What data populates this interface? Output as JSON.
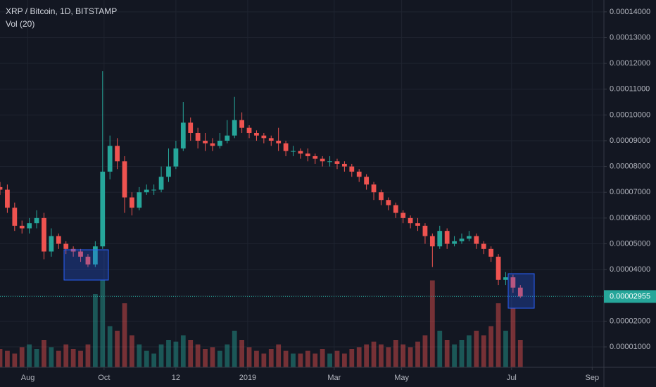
{
  "chart_data": {
    "type": "candlestick",
    "title": "XRP / Bitcoin, 1D, BITSTAMP",
    "volume_title": "Vol (20)",
    "x": [
      0,
      5,
      10,
      15,
      20,
      25,
      30,
      35,
      40,
      45,
      50,
      55,
      60,
      65,
      70,
      75,
      80,
      85,
      90,
      95,
      100,
      105,
      110,
      115,
      120,
      125,
      130,
      135,
      140,
      145,
      150,
      155,
      160,
      165,
      170,
      175,
      180,
      185,
      190,
      195,
      200,
      205,
      210,
      215,
      220,
      225,
      230,
      235,
      240,
      245,
      250,
      255,
      260,
      265,
      270,
      275,
      280,
      285,
      290,
      295,
      300,
      305,
      310,
      315,
      320,
      325,
      330,
      335,
      340,
      345,
      350,
      355
    ],
    "open": [
      7.2e-05,
      7.1e-05,
      6.4e-05,
      5.7e-05,
      5.6e-05,
      5.8e-05,
      6e-05,
      4.7e-05,
      5.3e-05,
      5e-05,
      4.8e-05,
      4.7e-05,
      4.5e-05,
      4.2e-05,
      4.9e-05,
      7.8e-05,
      8.8e-05,
      8.2e-05,
      6.8e-05,
      6.4e-05,
      7e-05,
      7.1e-05,
      7.1e-05,
      7.6e-05,
      8e-05,
      8.7e-05,
      9.7e-05,
      9.3e-05,
      9e-05,
      8.9e-05,
      8.8e-05,
      9e-05,
      9.2e-05,
      9.8e-05,
      9.5e-05,
      9.3e-05,
      9.2e-05,
      9.1e-05,
      9e-05,
      8.9e-05,
      8.6e-05,
      8.6e-05,
      8.5e-05,
      8.4e-05,
      8.3e-05,
      8.2e-05,
      8.2e-05,
      8.1e-05,
      8e-05,
      7.8e-05,
      7.6e-05,
      7.3e-05,
      7e-05,
      6.7e-05,
      6.5e-05,
      6.2e-05,
      6e-05,
      5.8e-05,
      5.7e-05,
      5.3e-05,
      4.9e-05,
      5.5e-05,
      5e-05,
      5.1e-05,
      5.2e-05,
      5.3e-05,
      5e-05,
      4.8e-05,
      4.5e-05,
      3.6e-05,
      3.7e-05,
      3.3e-05
    ],
    "high": [
      7.4e-05,
      7.3e-05,
      6.6e-05,
      5.9e-05,
      6e-05,
      6.3e-05,
      6.2e-05,
      5.6e-05,
      5.4e-05,
      5.1e-05,
      4.9e-05,
      4.8e-05,
      4.6e-05,
      5.1e-05,
      0.000117,
      9.2e-05,
      9.1e-05,
      8.4e-05,
      7e-05,
      7.2e-05,
      7.3e-05,
      7.3e-05,
      8e-05,
      8.7e-05,
      9e-05,
      0.000105,
      9.9e-05,
      9.5e-05,
      9.3e-05,
      9.1e-05,
      9.3e-05,
      9.8e-05,
      0.000107,
      0.000101,
      9.6e-05,
      9.4e-05,
      9.3e-05,
      9.2e-05,
      9.5e-05,
      9e-05,
      8.8e-05,
      8.7e-05,
      8.7e-05,
      8.5e-05,
      8.4e-05,
      8.4e-05,
      8.3e-05,
      8.2e-05,
      8.1e-05,
      7.9e-05,
      7.7e-05,
      7.4e-05,
      7.1e-05,
      6.8e-05,
      6.6e-05,
      6.3e-05,
      6.1e-05,
      6e-05,
      5.8e-05,
      5.4e-05,
      5.7e-05,
      5.6e-05,
      5.3e-05,
      5.4e-05,
      5.5e-05,
      5.4e-05,
      5.1e-05,
      4.9e-05,
      4.6e-05,
      3.9e-05,
      3.8e-05,
      3.4e-05
    ],
    "low": [
      6.9e-05,
      6.2e-05,
      5.5e-05,
      5.4e-05,
      5.4e-05,
      5.6e-05,
      4.4e-05,
      4.5e-05,
      4.8e-05,
      4.6e-05,
      4.5e-05,
      4.3e-05,
      4.1e-05,
      4.1e-05,
      4.8e-05,
      7.5e-05,
      7.9e-05,
      6.2e-05,
      6.1e-05,
      6.3e-05,
      6.9e-05,
      6.9e-05,
      7e-05,
      7.4e-05,
      7.9e-05,
      8.6e-05,
      9e-05,
      8.7e-05,
      8.6e-05,
      8.6e-05,
      8.7e-05,
      8.9e-05,
      9.1e-05,
      9.3e-05,
      9.1e-05,
      9e-05,
      8.9e-05,
      8.8e-05,
      8.6e-05,
      8.4e-05,
      8.4e-05,
      8.3e-05,
      8.2e-05,
      8.1e-05,
      8e-05,
      8e-05,
      7.9e-05,
      7.8e-05,
      7.6e-05,
      7.4e-05,
      7.1e-05,
      6.7e-05,
      6.5e-05,
      6.3e-05,
      6e-05,
      5.8e-05,
      5.6e-05,
      5.5e-05,
      5e-05,
      4.1e-05,
      4.8e-05,
      4.8e-05,
      4.9e-05,
      5e-05,
      5.1e-05,
      4.8e-05,
      4.6e-05,
      4.3e-05,
      3.4e-05,
      3.4e-05,
      3.1e-05,
      2.9e-05
    ],
    "close": [
      7.1e-05,
      6.4e-05,
      5.7e-05,
      5.6e-05,
      5.8e-05,
      6e-05,
      4.7e-05,
      5.3e-05,
      5e-05,
      4.8e-05,
      4.7e-05,
      4.5e-05,
      4.2e-05,
      4.9e-05,
      7.8e-05,
      8.8e-05,
      8.2e-05,
      6.8e-05,
      6.4e-05,
      7e-05,
      7.1e-05,
      7.1e-05,
      7.6e-05,
      8e-05,
      8.7e-05,
      9.7e-05,
      9.3e-05,
      9e-05,
      8.9e-05,
      8.8e-05,
      9e-05,
      9.2e-05,
      9.8e-05,
      9.5e-05,
      9.3e-05,
      9.2e-05,
      9.1e-05,
      9e-05,
      8.9e-05,
      8.6e-05,
      8.6e-05,
      8.5e-05,
      8.4e-05,
      8.3e-05,
      8.2e-05,
      8.2e-05,
      8.1e-05,
      8e-05,
      7.8e-05,
      7.6e-05,
      7.3e-05,
      7e-05,
      6.7e-05,
      6.5e-05,
      6.2e-05,
      6e-05,
      5.8e-05,
      5.7e-05,
      5.3e-05,
      4.9e-05,
      5.5e-05,
      5e-05,
      5.1e-05,
      5.2e-05,
      5.3e-05,
      5e-05,
      4.8e-05,
      4.5e-05,
      3.6e-05,
      3.7e-05,
      3.3e-05,
      2.955e-05
    ],
    "volume": [
      20,
      18,
      15,
      22,
      25,
      20,
      30,
      22,
      18,
      25,
      20,
      18,
      25,
      80,
      95,
      45,
      40,
      70,
      35,
      25,
      18,
      15,
      25,
      30,
      28,
      35,
      30,
      25,
      20,
      22,
      18,
      25,
      40,
      30,
      22,
      18,
      15,
      20,
      25,
      18,
      15,
      15,
      18,
      15,
      20,
      15,
      18,
      15,
      20,
      22,
      25,
      28,
      25,
      22,
      30,
      25,
      22,
      28,
      35,
      95,
      40,
      30,
      25,
      30,
      35,
      40,
      35,
      45,
      70,
      40,
      65,
      30
    ],
    "up_color": "#26a69a",
    "down_color": "#ef5350",
    "last_price": {
      "value": 2.955e-05,
      "label": "0.00002955"
    },
    "xlim": [
      0,
      412
    ],
    "xticks": [
      {
        "value": 19,
        "label": "Aug"
      },
      {
        "value": 71,
        "label": "Oct"
      },
      {
        "value": 120,
        "label": "12"
      },
      {
        "value": 169,
        "label": "2019"
      },
      {
        "value": 228,
        "label": "Mar"
      },
      {
        "value": 274,
        "label": "May"
      },
      {
        "value": 349,
        "label": "Jul"
      },
      {
        "value": 404,
        "label": "Sep"
      }
    ],
    "ylim": [
      2.08e-06,
      0.0001446
    ],
    "yticks": [
      {
        "value": 1e-05,
        "label": "0.00001000"
      },
      {
        "value": 2e-05,
        "label": "0.00002000"
      },
      {
        "value": 3e-05,
        "label": "0.00003000"
      },
      {
        "value": 4e-05,
        "label": "0.00004000"
      },
      {
        "value": 5e-05,
        "label": "0.00005000"
      },
      {
        "value": 6e-05,
        "label": "0.00006000"
      },
      {
        "value": 7e-05,
        "label": "0.00007000"
      },
      {
        "value": 8e-05,
        "label": "0.00008000"
      },
      {
        "value": 9e-05,
        "label": "0.00009000"
      },
      {
        "value": 0.0001,
        "label": "0.00010000"
      },
      {
        "value": 0.00011,
        "label": "0.00011000"
      },
      {
        "value": 0.00012,
        "label": "0.00012000"
      },
      {
        "value": 0.00013,
        "label": "0.00013000"
      },
      {
        "value": 0.00014,
        "label": "0.00014000"
      }
    ],
    "grid": true
  }
}
